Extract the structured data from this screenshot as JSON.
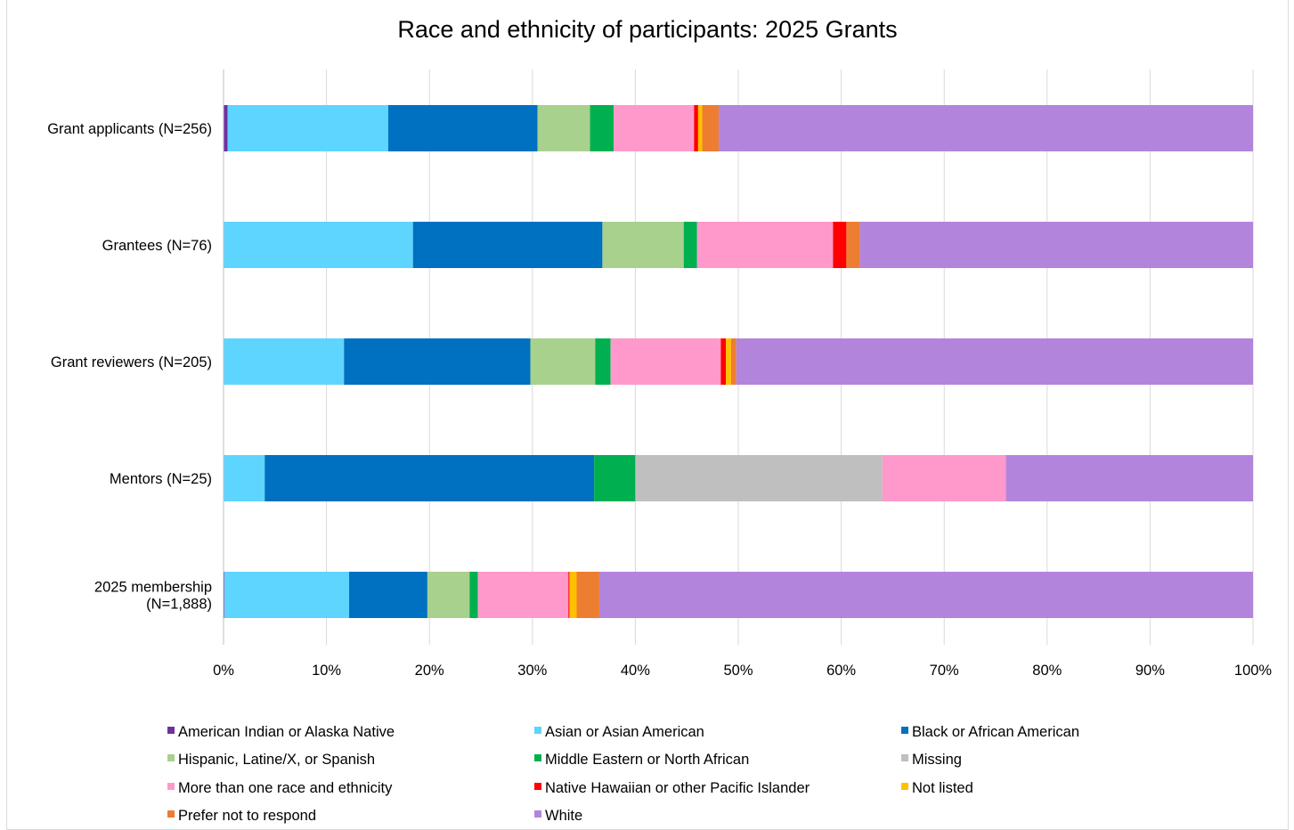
{
  "chart_data": {
    "type": "bar",
    "orientation": "horizontal",
    "stacked": true,
    "normalized": true,
    "title": "Race and ethnicity of participants: 2025 Grants",
    "xlabel": "",
    "ylabel": "",
    "xlim": [
      0,
      100
    ],
    "x_ticks": [
      "0%",
      "10%",
      "20%",
      "30%",
      "40%",
      "50%",
      "60%",
      "70%",
      "80%",
      "90%",
      "100%"
    ],
    "grid": true,
    "legend_position": "bottom",
    "categories": [
      [
        "Grant applicants (N=256)"
      ],
      [
        "Grantees (N=76)"
      ],
      [
        "Grant reviewers (N=205)"
      ],
      [
        "Mentors (N=25)"
      ],
      [
        "2025 membership",
        "(N=1,888)"
      ]
    ],
    "series": [
      {
        "name": "American Indian or Alaska Native",
        "color": "#7030a0",
        "values": [
          0.4,
          0.0,
          0.0,
          0.0,
          0.1
        ]
      },
      {
        "name": "Asian or Asian American",
        "color": "#5dd5ff",
        "values": [
          15.6,
          18.4,
          11.7,
          4.0,
          12.1
        ]
      },
      {
        "name": "Black or African American",
        "color": "#0070c0",
        "values": [
          14.5,
          18.4,
          18.1,
          32.0,
          7.6
        ]
      },
      {
        "name": "Hispanic, Latine/X, or Spanish",
        "color": "#a9d18e",
        "values": [
          5.1,
          7.9,
          6.3,
          0.0,
          4.1
        ]
      },
      {
        "name": "Middle Eastern or North African",
        "color": "#00b050",
        "values": [
          2.3,
          1.3,
          1.5,
          4.0,
          0.8
        ]
      },
      {
        "name": "Missing",
        "color": "#bfbfbf",
        "values": [
          0.0,
          0.0,
          0.0,
          24.0,
          0.0
        ]
      },
      {
        "name": "More than one race and ethnicity",
        "color": "#ff99cc",
        "values": [
          7.8,
          13.2,
          10.7,
          12.0,
          8.8
        ]
      },
      {
        "name": "Native Hawaiian or other Pacific Islander",
        "color": "#ff0000",
        "values": [
          0.4,
          1.3,
          0.5,
          0.0,
          0.1
        ]
      },
      {
        "name": "Not listed",
        "color": "#ffc000",
        "values": [
          0.4,
          0.0,
          0.5,
          0.0,
          0.7
        ]
      },
      {
        "name": "Prefer not to respond",
        "color": "#ed7d31",
        "values": [
          1.6,
          1.3,
          0.5,
          0.0,
          2.2
        ]
      },
      {
        "name": "White",
        "color": "#b384dc",
        "values": [
          51.9,
          38.2,
          50.2,
          24.0,
          63.5
        ]
      }
    ]
  }
}
